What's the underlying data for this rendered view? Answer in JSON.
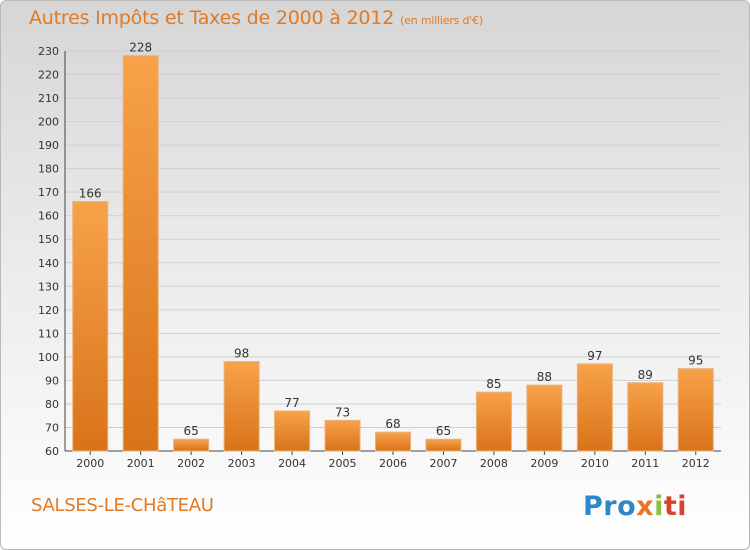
{
  "chart_data": {
    "type": "bar",
    "title": "Autres Impôts et Taxes de 2000 à 2012",
    "unit_note": "(en milliers d'€)",
    "categories": [
      "2000",
      "2001",
      "2002",
      "2003",
      "2004",
      "2005",
      "2006",
      "2007",
      "2008",
      "2009",
      "2010",
      "2011",
      "2012"
    ],
    "values": [
      166,
      228,
      65,
      98,
      77,
      73,
      68,
      65,
      85,
      88,
      97,
      89,
      95
    ],
    "ylim": [
      60,
      230
    ],
    "yticks": [
      60,
      70,
      80,
      90,
      100,
      110,
      120,
      130,
      140,
      150,
      160,
      170,
      180,
      190,
      200,
      210,
      220,
      230
    ],
    "grid": true,
    "bar_color": "#f0952f"
  },
  "location": "SALSES-LE-CHâTEAU",
  "logo": {
    "parts": [
      "Pro",
      "x",
      "i",
      "ti"
    ]
  }
}
